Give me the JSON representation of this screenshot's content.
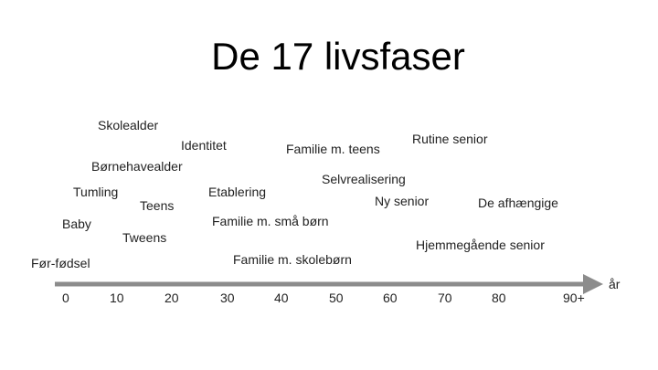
{
  "title": "De 17 livsfaser",
  "phases": [
    {
      "label": "Skolealder"
    },
    {
      "label": "Identitet"
    },
    {
      "label": "Familie m. teens"
    },
    {
      "label": "Rutine senior"
    },
    {
      "label": "Børnehavealder"
    },
    {
      "label": "Selvrealisering"
    },
    {
      "label": "Tumling"
    },
    {
      "label": "Etablering"
    },
    {
      "label": "Teens"
    },
    {
      "label": "Ny senior"
    },
    {
      "label": "De afhængige"
    },
    {
      "label": "Baby"
    },
    {
      "label": "Familie m. små børn"
    },
    {
      "label": "Tweens"
    },
    {
      "label": "Hjemmegående senior"
    },
    {
      "label": "Familie m. skolebørn"
    },
    {
      "label": "Før-fødsel"
    }
  ],
  "timeline": {
    "ticks": [
      "0",
      "10",
      "20",
      "30",
      "40",
      "50",
      "60",
      "70",
      "80",
      "90+"
    ],
    "unit_label": "år",
    "arrow_color": "#8c8c8c"
  }
}
